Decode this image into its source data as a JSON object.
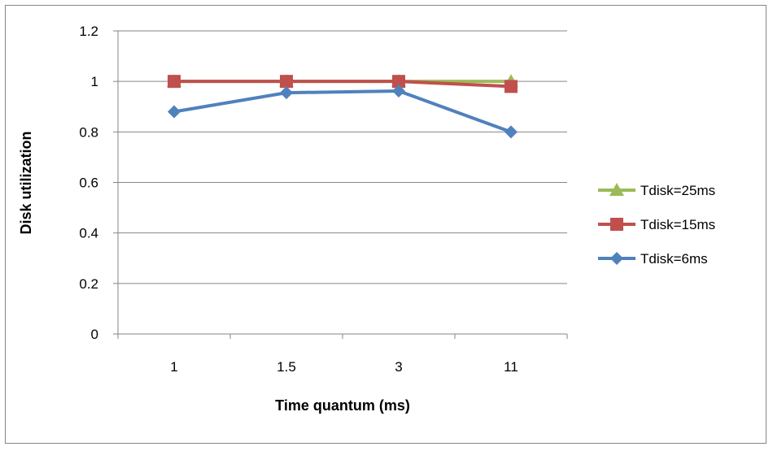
{
  "chart_data": {
    "type": "line",
    "title": "",
    "xlabel": "Time quantum (ms)",
    "ylabel": "Disk utilization",
    "categories": [
      "1",
      "1.5",
      "3",
      "11"
    ],
    "ylim": [
      0,
      1.2
    ],
    "yticks": [
      "0",
      "0.2",
      "0.4",
      "0.6",
      "0.8",
      "1",
      "1.2"
    ],
    "grid": "horizontal",
    "legend_position": "right",
    "series": [
      {
        "name": "Tdisk=25ms",
        "color": "#9BBB59",
        "marker": "triangle",
        "values": [
          1,
          1,
          1,
          1
        ]
      },
      {
        "name": "Tdisk=15ms",
        "color": "#C0504D",
        "marker": "square",
        "values": [
          1,
          1,
          1,
          0.98
        ]
      },
      {
        "name": "Tdisk=6ms",
        "color": "#4F81BD",
        "marker": "diamond",
        "values": [
          0.88,
          0.955,
          0.962,
          0.8
        ]
      }
    ]
  }
}
